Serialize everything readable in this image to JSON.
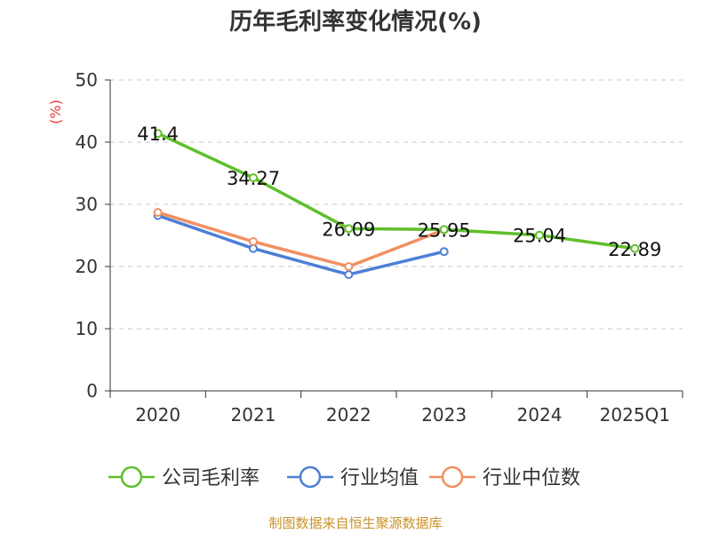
{
  "title": "历年毛利率变化情况(%)",
  "source": "制图数据来自恒生聚源数据库",
  "colors": {
    "company": "#5fbf2a",
    "industry_avg": "#4d7fd6",
    "industry_median": "#f19060",
    "axis": "#333333",
    "grid": "#c8c8c8",
    "unit_label": "#e23b3b"
  },
  "chart_data": {
    "type": "line",
    "title": "历年毛利率变化情况(%)",
    "ylabel": "(%)",
    "xlabel": "",
    "ylim": [
      0,
      50
    ],
    "yticks": [
      0,
      10,
      20,
      30,
      40,
      50
    ],
    "grid": true,
    "legend_position": "bottom",
    "categories": [
      "2020",
      "2021",
      "2022",
      "2023",
      "2024",
      "2025Q1"
    ],
    "series": [
      {
        "name": "公司毛利率",
        "values": [
          41.4,
          34.27,
          26.09,
          25.95,
          25.04,
          22.89
        ],
        "show_labels": true
      },
      {
        "name": "行业均值",
        "values": [
          28.2,
          22.9,
          18.7,
          22.4,
          null,
          null
        ],
        "show_labels": false
      },
      {
        "name": "行业中位数",
        "values": [
          28.7,
          24.0,
          20.0,
          25.9,
          null,
          null
        ],
        "show_labels": false
      }
    ]
  }
}
